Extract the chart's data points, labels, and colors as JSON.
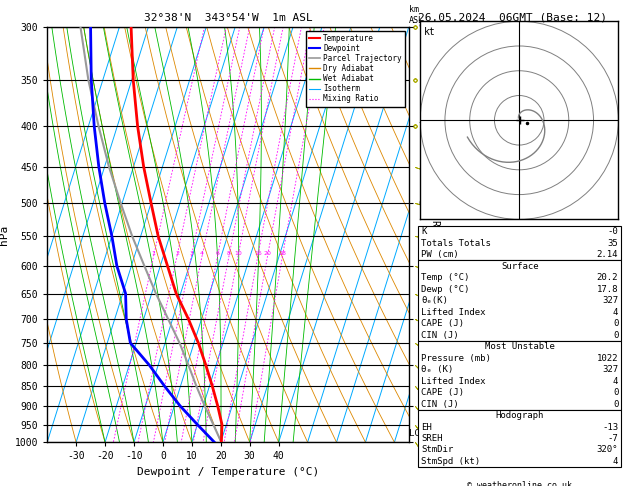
{
  "title_left": "32°38'N  343°54'W  1m ASL",
  "title_right": "26.05.2024  06GMT (Base: 12)",
  "xlabel": "Dewpoint / Temperature (°C)",
  "ylabel_left": "hPa",
  "pressure_levels": [
    300,
    350,
    400,
    450,
    500,
    550,
    600,
    650,
    700,
    750,
    800,
    850,
    900,
    950,
    1000
  ],
  "temp_ticks": [
    -30,
    -20,
    -10,
    0,
    10,
    20,
    30,
    40
  ],
  "t_min": -40,
  "t_max": 40,
  "p_min": 300,
  "p_max": 1000,
  "skew_deg": 45,
  "temp_profile_p": [
    1000,
    950,
    900,
    850,
    800,
    750,
    700,
    650,
    600,
    550,
    500,
    450,
    400,
    350,
    300
  ],
  "temp_profile_t": [
    20.2,
    18.5,
    15.0,
    11.0,
    6.5,
    1.5,
    -4.5,
    -11.5,
    -17.5,
    -24.0,
    -30.0,
    -36.5,
    -43.0,
    -49.5,
    -56.0
  ],
  "dewp_profile_p": [
    1000,
    950,
    900,
    850,
    800,
    750,
    700,
    650,
    600,
    550,
    500,
    450,
    400,
    350,
    300
  ],
  "dewp_profile_t": [
    17.8,
    10.0,
    2.0,
    -5.5,
    -13.0,
    -22.0,
    -26.0,
    -29.0,
    -35.0,
    -40.0,
    -46.0,
    -52.0,
    -58.0,
    -64.0,
    -70.0
  ],
  "parcel_profile_p": [
    1000,
    950,
    900,
    850,
    800,
    750,
    700,
    650,
    600,
    550,
    500,
    450,
    400,
    350,
    300
  ],
  "parcel_profile_t": [
    20.2,
    15.5,
    10.5,
    5.5,
    0.5,
    -5.0,
    -11.5,
    -18.5,
    -25.5,
    -33.0,
    -40.5,
    -48.5,
    -56.5,
    -65.0,
    -73.5
  ],
  "color_temp": "#ff0000",
  "color_dewp": "#0000ff",
  "color_parcel": "#999999",
  "color_isotherm": "#00aaff",
  "color_dry_adiabat": "#dd8800",
  "color_wet_adiabat": "#00bb00",
  "color_mixing_ratio": "#ff00ff",
  "mixing_ratio_values": [
    1,
    2,
    3,
    4,
    6,
    8,
    10,
    16,
    20,
    28
  ],
  "barb_pressures": [
    1000,
    950,
    900,
    850,
    800,
    750,
    700,
    650,
    600,
    550,
    500,
    450,
    400,
    350,
    300
  ],
  "barb_u": [
    -2,
    -3,
    -4,
    -5,
    -6,
    -7,
    -8,
    -7,
    -6,
    -5,
    -4,
    -3,
    -2,
    -2,
    -2
  ],
  "barb_v": [
    3,
    4,
    5,
    6,
    6,
    5,
    4,
    3,
    2,
    1,
    1,
    1,
    1,
    1,
    1
  ],
  "lcl_pressure": 975,
  "hodograph_rings": [
    10,
    20,
    30,
    40
  ],
  "info_K": "-0",
  "info_TT": "35",
  "info_PW": "2.14",
  "surf_temp": "20.2",
  "surf_dewp": "17.8",
  "surf_theta_e": "327",
  "surf_LI": "4",
  "surf_CAPE": "0",
  "surf_CIN": "0",
  "mu_pressure": "1022",
  "mu_theta_e": "327",
  "mu_LI": "4",
  "mu_CAPE": "0",
  "mu_CIN": "0",
  "hodo_EH": "-13",
  "hodo_SREH": "-7",
  "hodo_StmDir": "320°",
  "hodo_StmSpd": "4",
  "copyright": "© weatheronline.co.uk"
}
